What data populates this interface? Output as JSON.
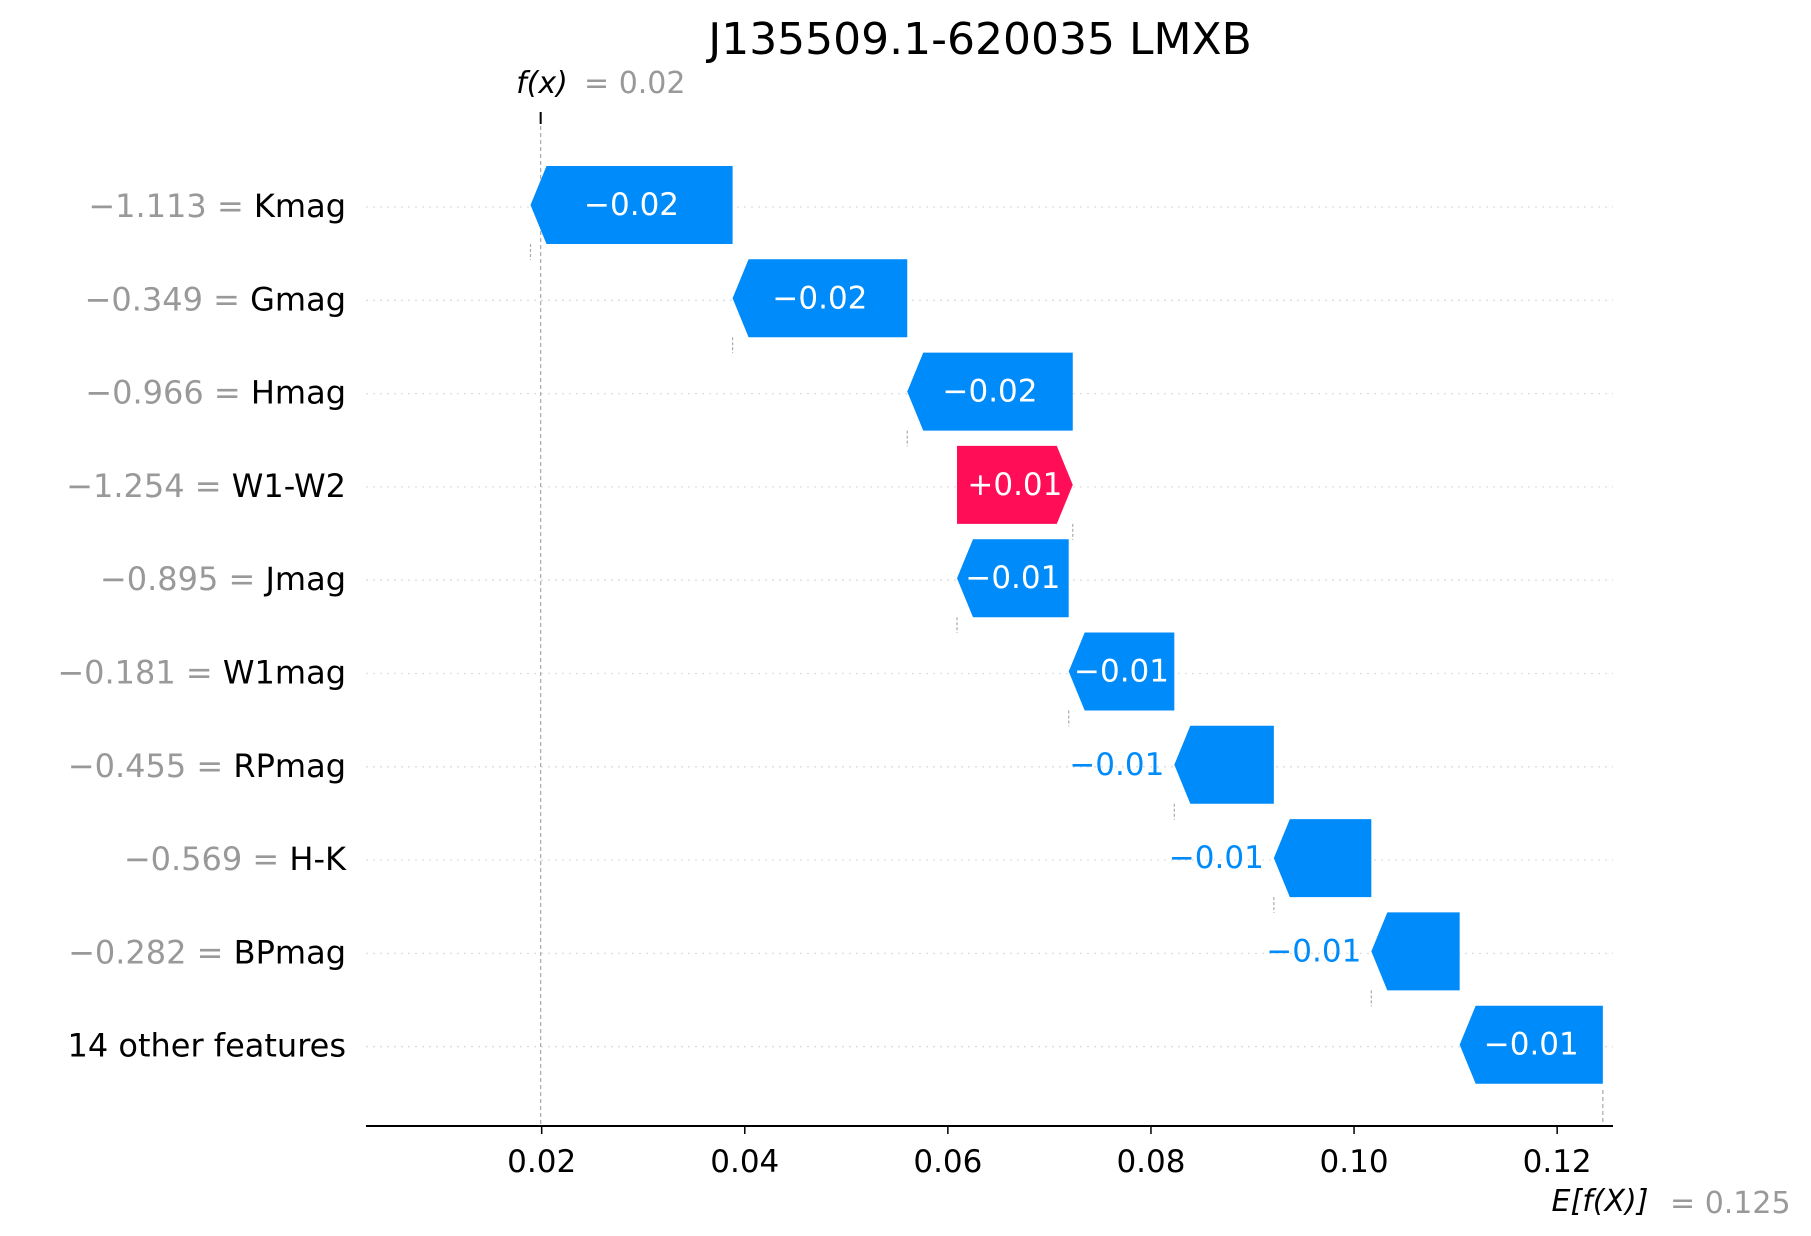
{
  "chart_data": {
    "type": "waterfall",
    "title": "J135509.1-620035 LMXB",
    "fx_label": "f(x)",
    "fx_value": "0.02",
    "fx_numeric": 0.0199,
    "efx_label": "E[f(X)]",
    "efx_value": "0.125",
    "efx_numeric": 0.1245,
    "xlim": [
      0.0027,
      0.1255
    ],
    "xticks": [
      0.02,
      0.04,
      0.06,
      0.08,
      0.1,
      0.12
    ],
    "xtick_labels": [
      "0.02",
      "0.04",
      "0.06",
      "0.08",
      "0.10",
      "0.12"
    ],
    "grid": "horizontal dotted",
    "features": [
      {
        "value": "−1.113",
        "name": "Kmag",
        "contribution": -0.0199,
        "label": "−0.02"
      },
      {
        "value": "−0.349",
        "name": "Gmag",
        "contribution": -0.0172,
        "label": "−0.02"
      },
      {
        "value": "−0.966",
        "name": "Hmag",
        "contribution": -0.0163,
        "label": "−0.02"
      },
      {
        "value": "−1.254",
        "name": "W1-W2",
        "contribution": 0.0114,
        "label": "+0.01"
      },
      {
        "value": "−0.895",
        "name": "Jmag",
        "contribution": -0.011,
        "label": "−0.01"
      },
      {
        "value": "−0.181",
        "name": "W1mag",
        "contribution": -0.0104,
        "label": "−0.01"
      },
      {
        "value": "−0.455",
        "name": "RPmag",
        "contribution": -0.0098,
        "label": "−0.01"
      },
      {
        "value": "−0.569",
        "name": "H-K",
        "contribution": -0.0096,
        "label": "−0.01"
      },
      {
        "value": "−0.282",
        "name": "BPmag",
        "contribution": -0.0087,
        "label": "−0.01"
      },
      {
        "value": "",
        "name": "14 other features",
        "contribution": -0.0141,
        "label": "−0.01"
      }
    ],
    "colors": {
      "positive": "#ff0d57",
      "negative": "#008bfb",
      "value_text": "#999999",
      "label_text": "#000000"
    }
  }
}
